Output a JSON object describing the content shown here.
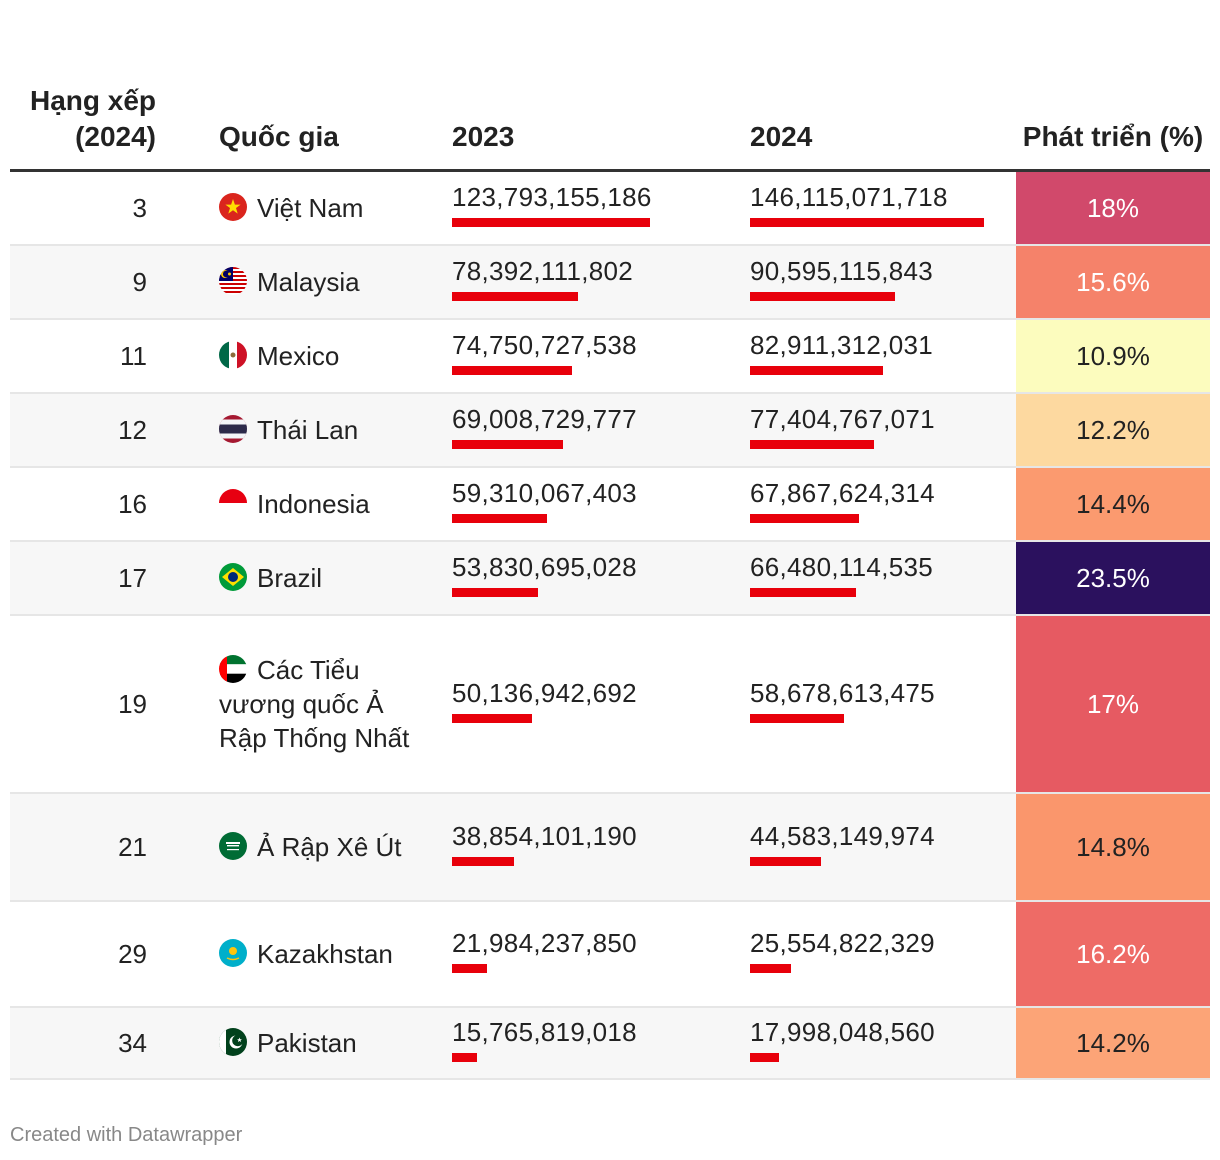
{
  "footer": "Created with Datawrapper",
  "chart_data": {
    "type": "table",
    "columns": {
      "rank": "Hạng xếp (2024)",
      "country": "Quốc gia",
      "y2023": "2023",
      "y2024": "2024",
      "growth": "Phát triển (%)"
    },
    "bar_color": "#e8000b",
    "bar_max_value": 146115071718,
    "rows": [
      {
        "rank": "3",
        "country": "Việt Nam",
        "flag": "vietnam-flag-icon",
        "y2023": "123,793,155,186",
        "v2023": 123793155186,
        "y2024": "146,115,071,718",
        "v2024": 146115071718,
        "growth": "18%",
        "color": "#d1496b",
        "text_color": "#ffffff"
      },
      {
        "rank": "9",
        "country": "Malaysia",
        "flag": "malaysia-flag-icon",
        "y2023": "78,392,111,802",
        "v2023": 78392111802,
        "y2024": "90,595,115,843",
        "v2024": 90595115843,
        "growth": "15.6%",
        "color": "#f5826a",
        "text_color": "#ffffff"
      },
      {
        "rank": "11",
        "country": "Mexico",
        "flag": "mexico-flag-icon",
        "y2023": "74,750,727,538",
        "v2023": 74750727538,
        "y2024": "82,911,312,031",
        "v2024": 82911312031,
        "growth": "10.9%",
        "color": "#fcfcbe",
        "text_color": "#222222"
      },
      {
        "rank": "12",
        "country": "Thái Lan",
        "flag": "thailand-flag-icon",
        "y2023": "69,008,729,777",
        "v2023": 69008729777,
        "y2024": "77,404,767,071",
        "v2024": 77404767071,
        "growth": "12.2%",
        "color": "#fdd9a0",
        "text_color": "#222222"
      },
      {
        "rank": "16",
        "country": "Indonesia",
        "flag": "indonesia-flag-icon",
        "y2023": "59,310,067,403",
        "v2023": 59310067403,
        "y2024": "67,867,624,314",
        "v2024": 67867624314,
        "growth": "14.4%",
        "color": "#fb9a6f",
        "text_color": "#222222"
      },
      {
        "rank": "17",
        "country": "Brazil",
        "flag": "brazil-flag-icon",
        "y2023": "53,830,695,028",
        "v2023": 53830695028,
        "y2024": "66,480,114,535",
        "v2024": 66480114535,
        "growth": "23.5%",
        "color": "#2b115e",
        "text_color": "#ffffff"
      },
      {
        "rank": "19",
        "country": "Các Tiểu vương quốc Ả Rập Thống Nhất",
        "flag": "uae-flag-icon",
        "y2023": "50,136,942,692",
        "v2023": 50136942692,
        "y2024": "58,678,613,475",
        "v2024": 58678613475,
        "growth": "17%",
        "color": "#e65a62",
        "text_color": "#ffffff"
      },
      {
        "rank": "21",
        "country": "Ả Rập Xê Út",
        "flag": "saudi-arabia-flag-icon",
        "y2023": "38,854,101,190",
        "v2023": 38854101190,
        "y2024": "44,583,149,974",
        "v2024": 44583149974,
        "growth": "14.8%",
        "color": "#fa966c",
        "text_color": "#222222"
      },
      {
        "rank": "29",
        "country": "Kazakhstan",
        "flag": "kazakhstan-flag-icon",
        "y2023": "21,984,237,850",
        "v2023": 21984237850,
        "y2024": "25,554,822,329",
        "v2024": 25554822329,
        "growth": "16.2%",
        "color": "#ee6b66",
        "text_color": "#ffffff"
      },
      {
        "rank": "34",
        "country": "Pakistan",
        "flag": "pakistan-flag-icon",
        "y2023": "15,765,819,018",
        "v2023": 15765819018,
        "y2024": "17,998,048,560",
        "v2024": 17998048560,
        "growth": "14.2%",
        "color": "#fca477",
        "text_color": "#222222"
      }
    ]
  }
}
